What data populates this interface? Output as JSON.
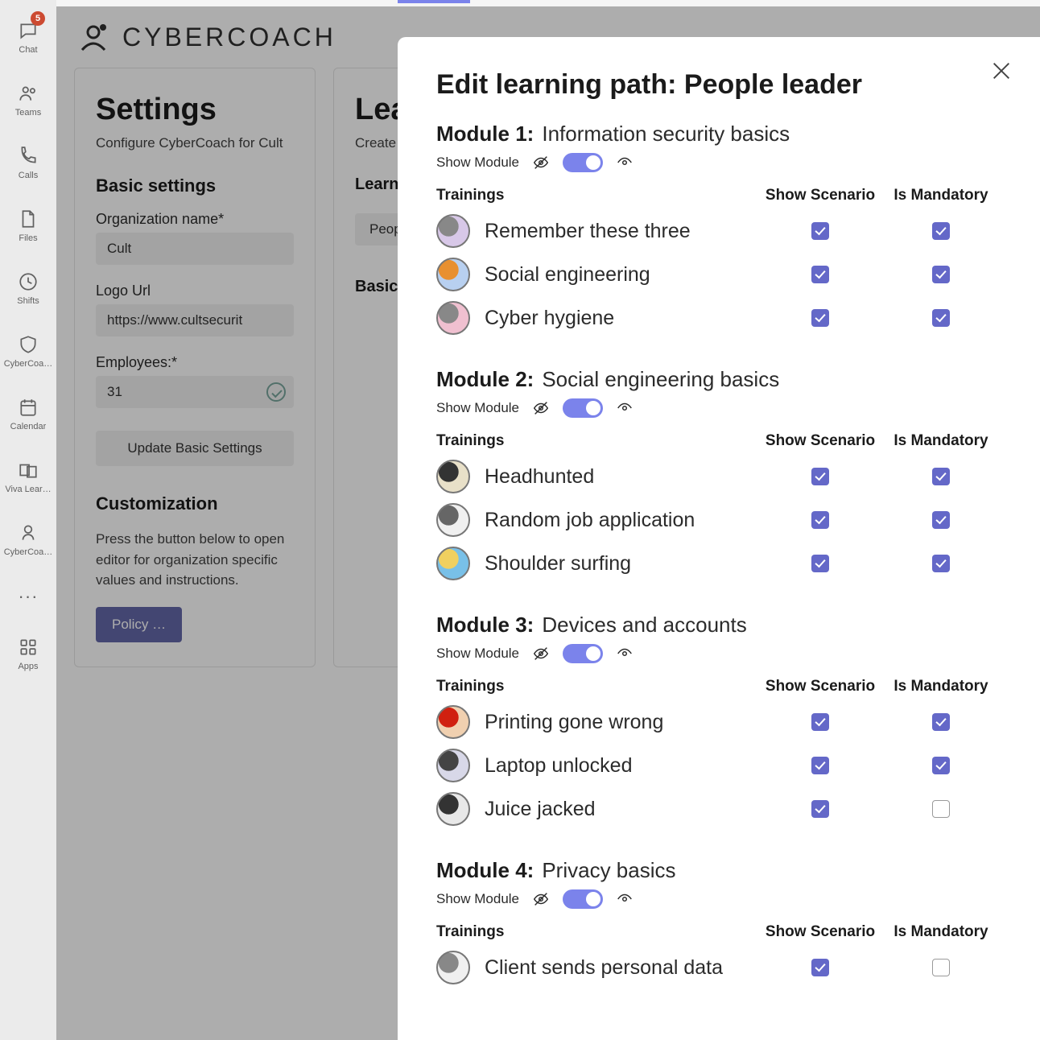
{
  "rail": {
    "items": [
      {
        "label": "Chat",
        "icon": "chat",
        "badge": "5"
      },
      {
        "label": "Teams",
        "icon": "teams"
      },
      {
        "label": "Calls",
        "icon": "calls"
      },
      {
        "label": "Files",
        "icon": "files"
      },
      {
        "label": "Shifts",
        "icon": "shifts"
      },
      {
        "label": "CyberCoa…",
        "icon": "shield"
      },
      {
        "label": "Calendar",
        "icon": "calendar"
      },
      {
        "label": "Viva Lear…",
        "icon": "viva"
      },
      {
        "label": "CyberCoa…",
        "icon": "shield2"
      }
    ],
    "apps_label": "Apps"
  },
  "brand": "CYBERCOACH",
  "settings_card": {
    "title": "Settings",
    "subtitle": "Configure CyberCoach for Cult",
    "section1": "Basic settings",
    "org_label": "Organization name*",
    "org_value": "Cult",
    "logo_label": "Logo Url",
    "logo_value": "https://www.cultsecurit",
    "emp_label": "Employees:*",
    "emp_value": "31",
    "update_btn": "Update Basic Settings",
    "section2": "Customization",
    "custom_desc": "Press the button below to open editor for organization specific values and instructions.",
    "policy_btn": "Policy …"
  },
  "paths_card": {
    "title_partial": "Lea",
    "subtitle_partial": "Create a",
    "section_partial": "Learni",
    "tag_partial": "Peop",
    "basic_partial": "Basic i"
  },
  "modal": {
    "title": "Edit learning path: People leader",
    "show_module_label": "Show Module",
    "col_trainings": "Trainings",
    "col_show": "Show Scenario",
    "col_mandatory": "Is Mandatory",
    "modules": [
      {
        "num": "Module 1:",
        "name": "Information security basics",
        "trainings": [
          {
            "name": "Remember these three",
            "show": true,
            "mandatory": true,
            "c1": "#d8c8e8",
            "c2": "#888"
          },
          {
            "name": "Social engineering",
            "show": true,
            "mandatory": true,
            "c1": "#b8d0f0",
            "c2": "#e89030"
          },
          {
            "name": "Cyber hygiene",
            "show": true,
            "mandatory": true,
            "c1": "#f0c0d0",
            "c2": "#888"
          }
        ]
      },
      {
        "num": "Module 2:",
        "name": "Social engineering basics",
        "trainings": [
          {
            "name": "Headhunted",
            "show": true,
            "mandatory": true,
            "c1": "#e8e0c8",
            "c2": "#333"
          },
          {
            "name": "Random job application",
            "show": true,
            "mandatory": true,
            "c1": "#f0f0f0",
            "c2": "#666"
          },
          {
            "name": "Shoulder surfing",
            "show": true,
            "mandatory": true,
            "c1": "#78c0e8",
            "c2": "#f0d060"
          }
        ]
      },
      {
        "num": "Module 3:",
        "name": "Devices and accounts",
        "trainings": [
          {
            "name": "Printing gone wrong",
            "show": true,
            "mandatory": true,
            "c1": "#f0d0b0",
            "c2": "#d02010"
          },
          {
            "name": "Laptop unlocked",
            "show": true,
            "mandatory": true,
            "c1": "#d8d8e8",
            "c2": "#444"
          },
          {
            "name": "Juice jacked",
            "show": true,
            "mandatory": false,
            "c1": "#e8e8e8",
            "c2": "#333"
          }
        ]
      },
      {
        "num": "Module 4:",
        "name": "Privacy basics",
        "trainings": [
          {
            "name": "Client sends personal data",
            "show": true,
            "mandatory": false,
            "c1": "#f0f0f0",
            "c2": "#888"
          }
        ]
      }
    ]
  }
}
